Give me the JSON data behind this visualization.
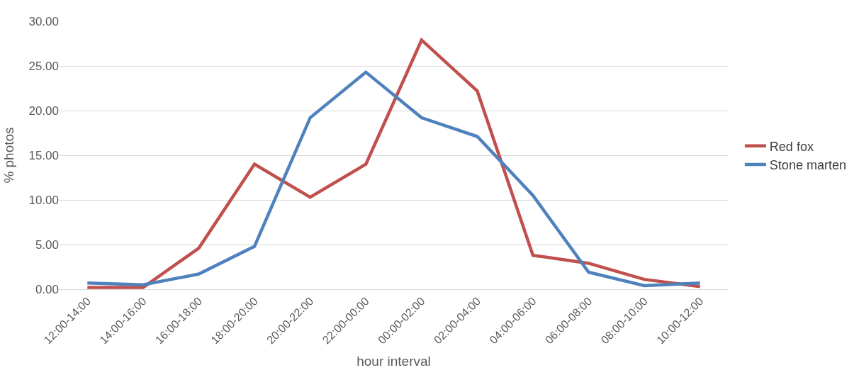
{
  "chart_data": {
    "type": "line",
    "xlabel": "hour interval",
    "ylabel": "% photos",
    "categories": [
      "12:00-14:00",
      "14:00-16:00",
      "16:00-18:00",
      "18:00-20:00",
      "20:00-22:00",
      "22:00-00:00",
      "00:00-02:00",
      "02:00-04:00",
      "04:00-06:00",
      "06:00-08:00",
      "08:00-10:00",
      "10:00-12:00"
    ],
    "series": [
      {
        "name": "Red fox",
        "color": "#c0504d",
        "values": [
          0.2,
          0.2,
          4.6,
          14.0,
          10.3,
          14.0,
          27.9,
          22.2,
          3.8,
          2.9,
          1.1,
          0.3
        ]
      },
      {
        "name": "Stone marten",
        "color": "#4f81bd",
        "values": [
          0.7,
          0.5,
          1.7,
          4.8,
          19.2,
          24.3,
          19.2,
          17.1,
          10.5,
          1.9,
          0.4,
          0.7
        ]
      }
    ],
    "ylim": [
      0,
      30
    ],
    "yticks": [
      {
        "value": 0,
        "label": "0.00"
      },
      {
        "value": 5,
        "label": "5.00"
      },
      {
        "value": 10,
        "label": "10.00"
      },
      {
        "value": 15,
        "label": "15.00"
      },
      {
        "value": 20,
        "label": "20.00"
      },
      {
        "value": 25,
        "label": "25.00"
      },
      {
        "value": 30,
        "label": "30.00"
      }
    ],
    "grid": "y",
    "legend": "right",
    "marker": "none",
    "line_style": "solid"
  }
}
